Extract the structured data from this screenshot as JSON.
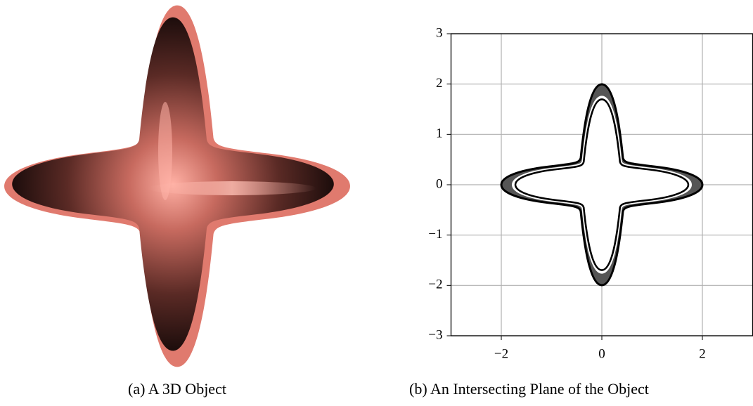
{
  "subfigures": [
    {
      "caption": "(a) A 3D Object"
    },
    {
      "caption": "(b) An Intersecting Plane of the Object",
      "chart_data": {
        "type": "line",
        "xlim": [
          -3,
          3
        ],
        "ylim": [
          -3,
          3
        ],
        "xticks": [
          {
            "value": -2,
            "label": "−2"
          },
          0,
          2
        ],
        "yticks": [
          {
            "value": -3,
            "label": "−3"
          },
          {
            "value": -2,
            "label": "−2"
          },
          {
            "value": -1,
            "label": "−1"
          },
          0,
          1,
          2,
          3
        ],
        "grid": true
      }
    }
  ]
}
